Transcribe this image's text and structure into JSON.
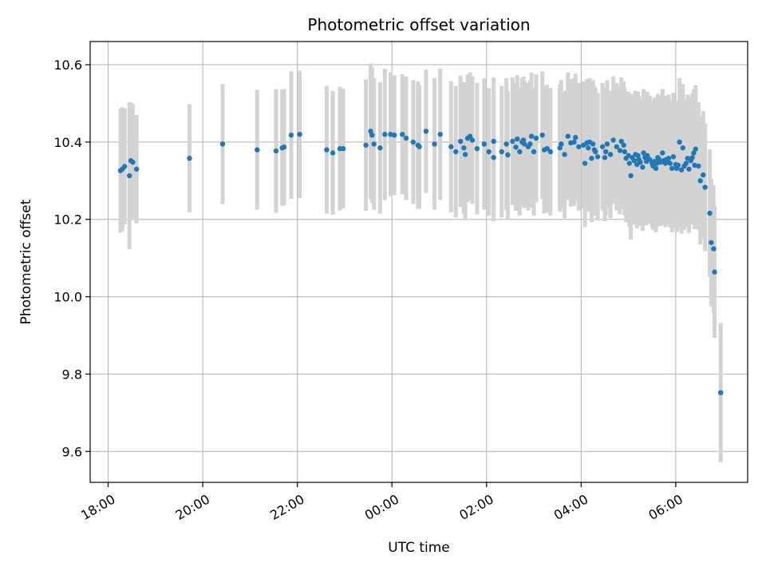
{
  "chart_data": {
    "type": "scatter",
    "title": "Photometric offset variation",
    "xlabel": "UTC time",
    "ylabel": "Photometric offset",
    "x_unit": "hours since 18:00 UTC",
    "xlim": [
      -0.38,
      13.52
    ],
    "ylim": [
      9.52,
      10.66
    ],
    "x_ticks": [
      {
        "value": 0,
        "label": "18:00"
      },
      {
        "value": 2,
        "label": "20:00"
      },
      {
        "value": 4,
        "label": "22:00"
      },
      {
        "value": 6,
        "label": "00:00"
      },
      {
        "value": 8,
        "label": "02:00"
      },
      {
        "value": 10,
        "label": "04:00"
      },
      {
        "value": 12,
        "label": "06:00"
      }
    ],
    "y_ticks": [
      {
        "value": 9.6,
        "label": "9.6"
      },
      {
        "value": 9.8,
        "label": "9.8"
      },
      {
        "value": 10.0,
        "label": "10.0"
      },
      {
        "value": 10.2,
        "label": "10.2"
      },
      {
        "value": 10.4,
        "label": "10.4"
      },
      {
        "value": 10.6,
        "label": "10.6"
      }
    ],
    "grid": true,
    "colors": {
      "point": "#1f77b4",
      "errorbar": "#d3d3d3",
      "grid": "#b0b0b0"
    },
    "points": [
      [
        0.26,
        10.326,
        0.16
      ],
      [
        0.3,
        10.33,
        0.16
      ],
      [
        0.35,
        10.337,
        0.15
      ],
      [
        0.45,
        10.313,
        0.19
      ],
      [
        0.48,
        10.352,
        0.15
      ],
      [
        0.52,
        10.348,
        0.15
      ],
      [
        0.6,
        10.33,
        0.14
      ],
      [
        1.72,
        10.358,
        0.14
      ],
      [
        2.42,
        10.395,
        0.155
      ],
      [
        3.15,
        10.38,
        0.155
      ],
      [
        3.55,
        10.377,
        0.16
      ],
      [
        3.68,
        10.385,
        0.15
      ],
      [
        3.72,
        10.387,
        0.15
      ],
      [
        3.87,
        10.418,
        0.165
      ],
      [
        4.05,
        10.42,
        0.165
      ],
      [
        4.62,
        10.38,
        0.165
      ],
      [
        4.75,
        10.372,
        0.16
      ],
      [
        4.9,
        10.383,
        0.16
      ],
      [
        4.97,
        10.383,
        0.155
      ],
      [
        5.45,
        10.392,
        0.17
      ],
      [
        5.55,
        10.428,
        0.175
      ],
      [
        5.58,
        10.418,
        0.175
      ],
      [
        5.62,
        10.395,
        0.17
      ],
      [
        5.75,
        10.385,
        0.17
      ],
      [
        5.85,
        10.42,
        0.17
      ],
      [
        5.97,
        10.42,
        0.16
      ],
      [
        6.05,
        10.418,
        0.155
      ],
      [
        6.22,
        10.42,
        0.155
      ],
      [
        6.3,
        10.41,
        0.16
      ],
      [
        6.45,
        10.4,
        0.16
      ],
      [
        6.55,
        10.392,
        0.165
      ],
      [
        6.58,
        10.388,
        0.16
      ],
      [
        6.72,
        10.428,
        0.16
      ],
      [
        6.9,
        10.395,
        0.17
      ],
      [
        7.02,
        10.42,
        0.17
      ],
      [
        7.25,
        10.388,
        0.17
      ],
      [
        7.35,
        10.375,
        0.17
      ],
      [
        7.45,
        10.402,
        0.17
      ],
      [
        7.52,
        10.385,
        0.17
      ],
      [
        7.55,
        10.368,
        0.17
      ],
      [
        7.6,
        10.41,
        0.165
      ],
      [
        7.65,
        10.415,
        0.165
      ],
      [
        7.7,
        10.405,
        0.165
      ],
      [
        7.8,
        10.383,
        0.17
      ],
      [
        7.95,
        10.395,
        0.17
      ],
      [
        8.05,
        10.375,
        0.165
      ],
      [
        8.15,
        10.402,
        0.165
      ],
      [
        8.15,
        10.36,
        0.165
      ],
      [
        8.32,
        10.375,
        0.17
      ],
      [
        8.42,
        10.395,
        0.17
      ],
      [
        8.45,
        10.367,
        0.165
      ],
      [
        8.55,
        10.402,
        0.165
      ],
      [
        8.62,
        10.387,
        0.165
      ],
      [
        8.65,
        10.408,
        0.165
      ],
      [
        8.7,
        10.375,
        0.165
      ],
      [
        8.75,
        10.4,
        0.165
      ],
      [
        8.78,
        10.405,
        0.165
      ],
      [
        8.8,
        10.395,
        0.165
      ],
      [
        8.88,
        10.388,
        0.165
      ],
      [
        8.92,
        10.395,
        0.165
      ],
      [
        8.95,
        10.415,
        0.165
      ],
      [
        9.0,
        10.375,
        0.165
      ],
      [
        9.05,
        10.41,
        0.165
      ],
      [
        9.18,
        10.418,
        0.165
      ],
      [
        9.22,
        10.38,
        0.165
      ],
      [
        9.28,
        10.383,
        0.165
      ],
      [
        9.35,
        10.375,
        0.165
      ],
      [
        9.55,
        10.385,
        0.165
      ],
      [
        9.58,
        10.395,
        0.165
      ],
      [
        9.65,
        10.368,
        0.165
      ],
      [
        9.72,
        10.415,
        0.165
      ],
      [
        9.78,
        10.398,
        0.165
      ],
      [
        9.85,
        10.4,
        0.165
      ],
      [
        9.88,
        10.412,
        0.165
      ],
      [
        9.95,
        10.388,
        0.165
      ],
      [
        10.05,
        10.392,
        0.165
      ],
      [
        10.08,
        10.345,
        0.165
      ],
      [
        10.12,
        10.398,
        0.165
      ],
      [
        10.15,
        10.385,
        0.165
      ],
      [
        10.18,
        10.4,
        0.165
      ],
      [
        10.22,
        10.358,
        0.165
      ],
      [
        10.25,
        10.395,
        0.165
      ],
      [
        10.28,
        10.38,
        0.165
      ],
      [
        10.3,
        10.375,
        0.165
      ],
      [
        10.35,
        10.362,
        0.165
      ],
      [
        10.45,
        10.388,
        0.165
      ],
      [
        10.5,
        10.36,
        0.165
      ],
      [
        10.52,
        10.375,
        0.165
      ],
      [
        10.55,
        10.395,
        0.165
      ],
      [
        10.62,
        10.368,
        0.165
      ],
      [
        10.68,
        10.405,
        0.165
      ],
      [
        10.75,
        10.388,
        0.165
      ],
      [
        10.82,
        10.378,
        0.165
      ],
      [
        10.85,
        10.402,
        0.165
      ],
      [
        10.9,
        10.392,
        0.165
      ],
      [
        10.92,
        10.375,
        0.165
      ],
      [
        10.95,
        10.358,
        0.165
      ],
      [
        11.0,
        10.365,
        0.165
      ],
      [
        11.02,
        10.345,
        0.165
      ],
      [
        11.05,
        10.313,
        0.165
      ],
      [
        11.08,
        10.36,
        0.165
      ],
      [
        11.12,
        10.352,
        0.165
      ],
      [
        11.15,
        10.368,
        0.165
      ],
      [
        11.18,
        10.342,
        0.165
      ],
      [
        11.2,
        10.365,
        0.165
      ],
      [
        11.22,
        10.355,
        0.165
      ],
      [
        11.25,
        10.348,
        0.165
      ],
      [
        11.3,
        10.335,
        0.165
      ],
      [
        11.32,
        10.372,
        0.165
      ],
      [
        11.35,
        10.36,
        0.165
      ],
      [
        11.38,
        10.35,
        0.165
      ],
      [
        11.4,
        10.365,
        0.165
      ],
      [
        11.45,
        10.355,
        0.165
      ],
      [
        11.5,
        10.345,
        0.165
      ],
      [
        11.52,
        10.338,
        0.165
      ],
      [
        11.55,
        10.35,
        0.165
      ],
      [
        11.58,
        10.332,
        0.165
      ],
      [
        11.6,
        10.345,
        0.165
      ],
      [
        11.62,
        10.36,
        0.165
      ],
      [
        11.65,
        10.355,
        0.165
      ],
      [
        11.68,
        10.348,
        0.165
      ],
      [
        11.72,
        10.372,
        0.165
      ],
      [
        11.75,
        10.352,
        0.165
      ],
      [
        11.78,
        10.345,
        0.165
      ],
      [
        11.8,
        10.355,
        0.165
      ],
      [
        11.82,
        10.352,
        0.165
      ],
      [
        11.85,
        10.358,
        0.165
      ],
      [
        11.88,
        10.345,
        0.165
      ],
      [
        11.92,
        10.332,
        0.165
      ],
      [
        11.95,
        10.362,
        0.165
      ],
      [
        12.0,
        10.342,
        0.165
      ],
      [
        12.02,
        10.332,
        0.165
      ],
      [
        12.05,
        10.34,
        0.165
      ],
      [
        12.08,
        10.4,
        0.165
      ],
      [
        12.12,
        10.328,
        0.165
      ],
      [
        12.15,
        10.385,
        0.165
      ],
      [
        12.18,
        10.338,
        0.165
      ],
      [
        12.22,
        10.345,
        0.165
      ],
      [
        12.25,
        10.358,
        0.165
      ],
      [
        12.28,
        10.33,
        0.165
      ],
      [
        12.32,
        10.352,
        0.165
      ],
      [
        12.35,
        10.36,
        0.165
      ],
      [
        12.38,
        10.372,
        0.165
      ],
      [
        12.4,
        10.34,
        0.165
      ],
      [
        12.42,
        10.382,
        0.165
      ],
      [
        12.48,
        10.338,
        0.165
      ],
      [
        12.52,
        10.3,
        0.165
      ],
      [
        12.58,
        10.315,
        0.165
      ],
      [
        12.62,
        10.283,
        0.165
      ],
      [
        12.72,
        10.216,
        0.165
      ],
      [
        12.75,
        10.14,
        0.165
      ],
      [
        12.8,
        10.124,
        0.165
      ],
      [
        12.82,
        10.064,
        0.17
      ],
      [
        12.95,
        9.752,
        0.18
      ]
    ]
  }
}
